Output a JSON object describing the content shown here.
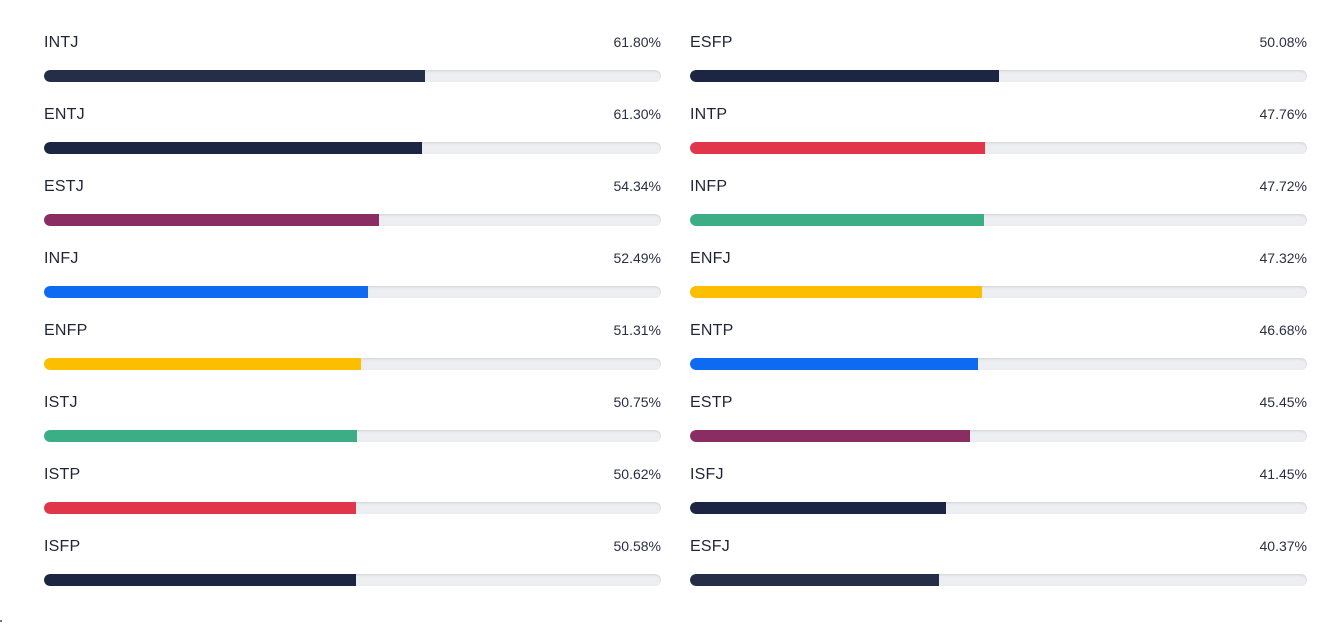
{
  "colors": {
    "navy": "#252e48",
    "dark_navy": "#1c2541",
    "plum": "#892d62",
    "blue": "#0f6af2",
    "amber": "#fbbf00",
    "green": "#3bae86",
    "red": "#e1354a",
    "track": "#eceef1"
  },
  "left_column": [
    {
      "label": "INTJ",
      "value_text": "61.80%",
      "percent": 61.8,
      "color": "#252e48"
    },
    {
      "label": "ENTJ",
      "value_text": "61.30%",
      "percent": 61.3,
      "color": "#1c2541"
    },
    {
      "label": "ESTJ",
      "value_text": "54.34%",
      "percent": 54.34,
      "color": "#892d62"
    },
    {
      "label": "INFJ",
      "value_text": "52.49%",
      "percent": 52.49,
      "color": "#0f6af2"
    },
    {
      "label": "ENFP",
      "value_text": "51.31%",
      "percent": 51.31,
      "color": "#fbbf00"
    },
    {
      "label": "ISTJ",
      "value_text": "50.75%",
      "percent": 50.75,
      "color": "#3bae86"
    },
    {
      "label": "ISTP",
      "value_text": "50.62%",
      "percent": 50.62,
      "color": "#e1354a"
    },
    {
      "label": "ISFP",
      "value_text": "50.58%",
      "percent": 50.58,
      "color": "#1c2541"
    }
  ],
  "right_column": [
    {
      "label": "ESFP",
      "value_text": "50.08%",
      "percent": 50.08,
      "color": "#1c2541"
    },
    {
      "label": "INTP",
      "value_text": "47.76%",
      "percent": 47.76,
      "color": "#e1354a"
    },
    {
      "label": "INFP",
      "value_text": "47.72%",
      "percent": 47.72,
      "color": "#3bae86"
    },
    {
      "label": "ENFJ",
      "value_text": "47.32%",
      "percent": 47.32,
      "color": "#fbbf00"
    },
    {
      "label": "ENTP",
      "value_text": "46.68%",
      "percent": 46.68,
      "color": "#0f6af2"
    },
    {
      "label": "ESTP",
      "value_text": "45.45%",
      "percent": 45.45,
      "color": "#892d62"
    },
    {
      "label": "ISFJ",
      "value_text": "41.45%",
      "percent": 41.45,
      "color": "#1c2541"
    },
    {
      "label": "ESFJ",
      "value_text": "40.37%",
      "percent": 40.37,
      "color": "#252e48"
    }
  ]
}
